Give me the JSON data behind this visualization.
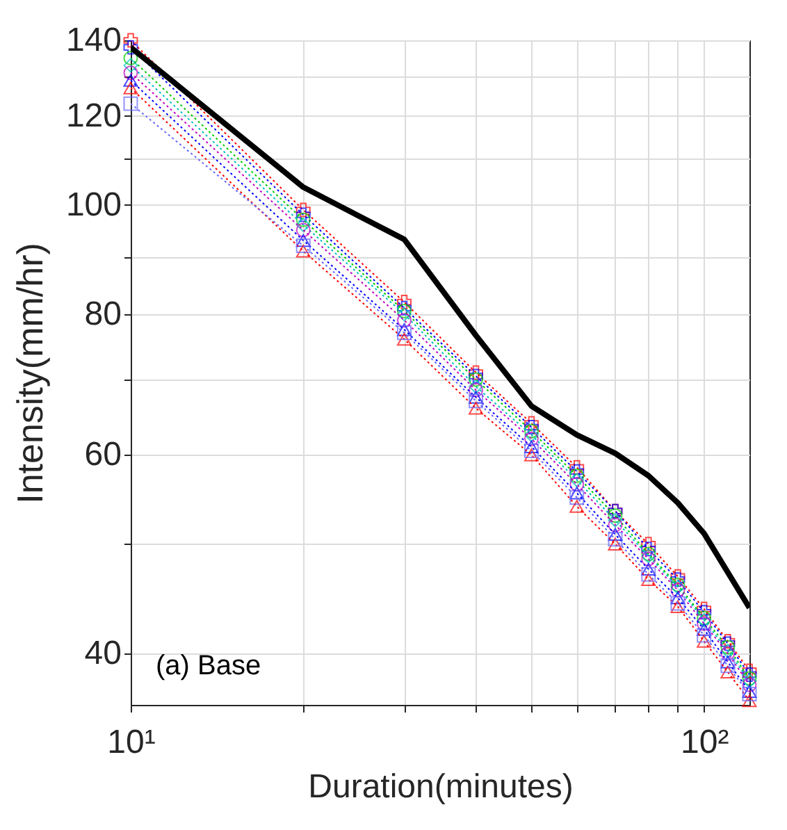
{
  "chart_data": {
    "type": "line",
    "xlabel": "Duration(minutes)",
    "ylabel": "Intensity(mm/hr)",
    "log": "xy",
    "grid": true,
    "xlim": [
      10,
      120
    ],
    "ylim": [
      36,
      140
    ],
    "xticks": [
      {
        "value": 10,
        "label": "10¹"
      },
      {
        "value": 20,
        "label": null
      },
      {
        "value": 30,
        "label": null
      },
      {
        "value": 40,
        "label": null
      },
      {
        "value": 50,
        "label": null
      },
      {
        "value": 60,
        "label": null
      },
      {
        "value": 70,
        "label": null
      },
      {
        "value": 80,
        "label": null
      },
      {
        "value": 90,
        "label": null
      },
      {
        "value": 100,
        "label": "10²"
      }
    ],
    "yticks": [
      40,
      {
        "value": 50,
        "label": null
      },
      60,
      {
        "value": 70,
        "label": null
      },
      80,
      {
        "value": 90,
        "label": null
      },
      100,
      {
        "value": 110,
        "label": null
      },
      120,
      {
        "value": 130,
        "label": null
      },
      140
    ],
    "x": [
      10,
      20,
      30,
      40,
      50,
      60,
      70,
      80,
      90,
      100,
      110,
      120
    ],
    "annotations": [
      "(a) Base"
    ],
    "series": [
      {
        "color": "#ff0000",
        "marker": "cross",
        "line_style": "dotted",
        "values": [
          140,
          99,
          82,
          71,
          64,
          58.5,
          53.5,
          50,
          46.8,
          43.8,
          41,
          38.6
        ]
      },
      {
        "color": "#0000ff",
        "marker": "cross",
        "line_style": "dotted",
        "values": [
          138,
          98,
          81,
          70.5,
          63.5,
          58,
          53.5,
          49.5,
          46.5,
          43.5,
          40.8,
          38.3
        ]
      },
      {
        "color": "#00cc00",
        "marker": "circle",
        "line_style": "dotted",
        "values": [
          135,
          97,
          80.5,
          70,
          63,
          57.5,
          53,
          49,
          46,
          43,
          40.5,
          38
        ]
      },
      {
        "color": "#00bfbf",
        "marker": "diamond",
        "line_style": "dotted",
        "values": [
          133,
          96,
          80,
          69,
          62.5,
          57,
          52.5,
          48.8,
          45.8,
          42.8,
          40.2,
          37.8
        ]
      },
      {
        "color": "#bf00bf",
        "marker": "circle",
        "line_style": "dotted",
        "values": [
          131,
          95,
          79,
          68.5,
          62,
          56.5,
          52,
          48.5,
          45.5,
          42.5,
          40,
          37.5
        ]
      },
      {
        "color": "#0000ff",
        "marker": "triangle",
        "line_style": "dotted",
        "values": [
          129,
          93,
          77.5,
          67.5,
          61,
          55.5,
          51,
          47.5,
          44.8,
          42,
          39.3,
          37
        ]
      },
      {
        "color": "#ff0000",
        "marker": "triangle",
        "line_style": "dotted",
        "values": [
          127,
          91,
          76,
          66,
          60,
          54,
          50,
          46.5,
          44,
          41,
          38.5,
          36.3
        ]
      },
      {
        "color": "#6666ff",
        "marker": "square",
        "line_style": "dotted",
        "values": [
          123,
          92,
          77,
          67,
          60.5,
          55,
          50.5,
          47,
          44.3,
          41.5,
          39,
          36.8
        ]
      },
      {
        "color": "#000000",
        "marker": "none",
        "line_style": "solid",
        "values": [
          138,
          103.7,
          93.2,
          76.6,
          66.3,
          62.5,
          60.2,
          57.5,
          54.4,
          51.1,
          47.2,
          43.9
        ]
      }
    ]
  }
}
